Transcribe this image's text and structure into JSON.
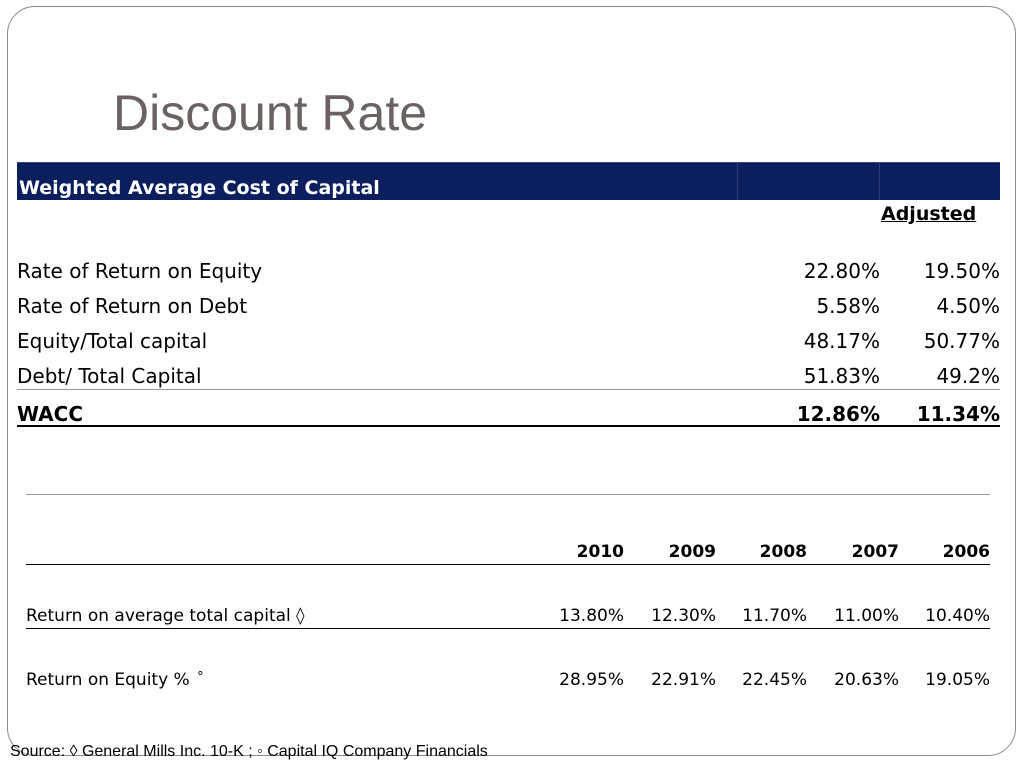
{
  "slide": {
    "title": "Discount Rate"
  },
  "wacc_table": {
    "header": "Weighted Average Cost of Capital",
    "adjusted_label": "Adjusted",
    "rows": [
      {
        "label": "Rate of Return on Equity",
        "base": "22.80%",
        "adjusted": "19.50%"
      },
      {
        "label": "Rate of Return on Debt",
        "base": "5.58%",
        "adjusted": "4.50%"
      },
      {
        "label": "Equity/Total capital",
        "base": "48.17%",
        "adjusted": "50.77%"
      },
      {
        "label": "Debt/ Total Capital",
        "base": "51.83%",
        "adjusted": "49.2%"
      }
    ],
    "total": {
      "label": "WACC",
      "base": "12.86%",
      "adjusted": "11.34%"
    }
  },
  "returns_table": {
    "years": [
      "2010",
      "2009",
      "2008",
      "2007",
      "2006"
    ],
    "rows": [
      {
        "label": "Return on average total capital ◊",
        "marker": "",
        "values": [
          "13.80%",
          "12.30%",
          "11.70%",
          "11.00%",
          "10.40%"
        ]
      },
      {
        "label": "Return on Equity %",
        "marker": "°",
        "values": [
          "28.95%",
          "22.91%",
          "22.45%",
          "20.63%",
          "19.05%"
        ]
      }
    ]
  },
  "source": "Source: ◊ General Mills Inc. 10-K ; ◦ Capital IQ Company Financials"
}
